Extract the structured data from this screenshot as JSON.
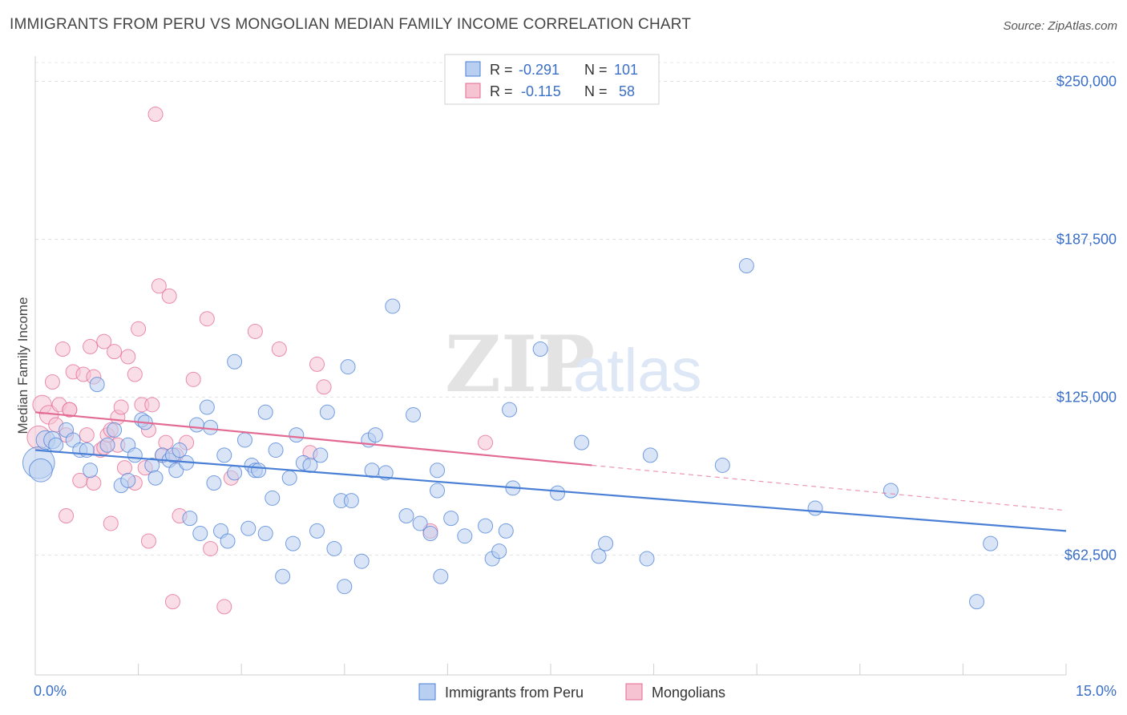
{
  "title": "IMMIGRANTS FROM PERU VS MONGOLIAN MEDIAN FAMILY INCOME CORRELATION CHART",
  "source": "Source: ZipAtlas.com",
  "colors": {
    "blue": "#4a7fd6",
    "blue_fill": "#b9cff1",
    "pink": "#e36a92",
    "pink_fill": "#f6c3d3",
    "axis_text": "#3a6fc7"
  },
  "watermark": {
    "zip": "ZIP",
    "atlas": "atlas"
  },
  "legend": {
    "r_label": "R =",
    "n_label": "N =",
    "rows": [
      {
        "r": "-0.291",
        "n": "101"
      },
      {
        "r": "-0.115",
        "n": "58"
      }
    ]
  },
  "chart_data": {
    "type": "scatter",
    "xlabel": "",
    "ylabel": "Median Family Income",
    "xlim": [
      0,
      15
    ],
    "ylim": [
      15000,
      260000
    ],
    "x_tick_labels": [
      "0.0%",
      "15.0%"
    ],
    "y_ticks": [
      62500,
      125000,
      187500,
      250000
    ],
    "y_tick_labels": [
      "$62,500",
      "$125,000",
      "$187,500",
      "$250,000"
    ],
    "grid": "horizontal dashed",
    "legend_position": "top-center",
    "series": [
      {
        "name": "Immigrants from Peru",
        "color": "#4a7fd6",
        "trend": {
          "x": [
            0,
            15
          ],
          "y": [
            104000,
            72000
          ],
          "dashed_to": 15
        },
        "points": [
          [
            0.05,
            99000,
            2.2
          ],
          [
            0.08,
            96000,
            1.6
          ],
          [
            0.15,
            108000,
            1.3
          ],
          [
            0.25,
            108000,
            1.2
          ],
          [
            0.3,
            106000,
            1
          ],
          [
            0.45,
            112000,
            1
          ],
          [
            0.55,
            108000,
            1
          ],
          [
            0.65,
            104000,
            1
          ],
          [
            0.75,
            104000,
            1
          ],
          [
            0.8,
            96000,
            1
          ],
          [
            0.9,
            130000,
            1
          ],
          [
            1.05,
            106000,
            1
          ],
          [
            1.15,
            112000,
            1
          ],
          [
            1.25,
            90000,
            1
          ],
          [
            1.35,
            92000,
            1
          ],
          [
            1.35,
            106000,
            1
          ],
          [
            1.45,
            102000,
            1
          ],
          [
            1.55,
            116000,
            1
          ],
          [
            1.6,
            115000,
            1
          ],
          [
            1.7,
            98000,
            1
          ],
          [
            1.75,
            93000,
            1
          ],
          [
            1.85,
            102000,
            1
          ],
          [
            1.95,
            100000,
            1
          ],
          [
            2.0,
            102000,
            1
          ],
          [
            2.05,
            96000,
            1
          ],
          [
            2.1,
            104000,
            1
          ],
          [
            2.2,
            99000,
            1
          ],
          [
            2.25,
            77000,
            1
          ],
          [
            2.4,
            71000,
            1
          ],
          [
            2.5,
            121000,
            1
          ],
          [
            2.55,
            113000,
            1
          ],
          [
            2.6,
            91000,
            1
          ],
          [
            2.35,
            114000,
            1
          ],
          [
            2.7,
            72000,
            1
          ],
          [
            2.75,
            102000,
            1
          ],
          [
            2.8,
            68000,
            1
          ],
          [
            2.9,
            95000,
            1
          ],
          [
            2.9,
            139000,
            1
          ],
          [
            3.05,
            108000,
            1
          ],
          [
            3.1,
            73000,
            1
          ],
          [
            3.15,
            98000,
            1
          ],
          [
            3.2,
            96000,
            1
          ],
          [
            3.25,
            96000,
            1
          ],
          [
            3.35,
            71000,
            1
          ],
          [
            3.35,
            119000,
            1
          ],
          [
            3.45,
            85000,
            1
          ],
          [
            3.5,
            104000,
            1
          ],
          [
            3.6,
            54000,
            1
          ],
          [
            3.7,
            93000,
            1
          ],
          [
            3.75,
            67000,
            1
          ],
          [
            3.8,
            110000,
            1
          ],
          [
            3.9,
            99000,
            1
          ],
          [
            4.0,
            98000,
            1
          ],
          [
            4.1,
            72000,
            1
          ],
          [
            4.15,
            102000,
            1
          ],
          [
            4.25,
            119000,
            1
          ],
          [
            4.35,
            65000,
            1
          ],
          [
            4.45,
            84000,
            1
          ],
          [
            4.5,
            50000,
            1
          ],
          [
            4.55,
            137000,
            1
          ],
          [
            4.6,
            84000,
            1
          ],
          [
            4.75,
            60000,
            1
          ],
          [
            4.85,
            108000,
            1
          ],
          [
            4.9,
            96000,
            1
          ],
          [
            4.95,
            110000,
            1
          ],
          [
            5.1,
            95000,
            1
          ],
          [
            5.2,
            161000,
            1
          ],
          [
            5.4,
            78000,
            1
          ],
          [
            5.5,
            118000,
            1
          ],
          [
            5.6,
            75000,
            1
          ],
          [
            5.75,
            71000,
            1
          ],
          [
            5.85,
            88000,
            1
          ],
          [
            5.85,
            96000,
            1
          ],
          [
            5.9,
            54000,
            1
          ],
          [
            6.05,
            77000,
            1
          ],
          [
            6.25,
            70000,
            1
          ],
          [
            6.55,
            74000,
            1
          ],
          [
            6.65,
            61000,
            1
          ],
          [
            6.75,
            64000,
            1
          ],
          [
            6.85,
            72000,
            1
          ],
          [
            6.9,
            120000,
            1
          ],
          [
            6.95,
            89000,
            1
          ],
          [
            7.35,
            144000,
            1
          ],
          [
            7.6,
            87000,
            1
          ],
          [
            7.95,
            107000,
            1
          ],
          [
            8.2,
            62000,
            1
          ],
          [
            8.3,
            67000,
            1
          ],
          [
            8.9,
            61000,
            1
          ],
          [
            8.95,
            102000,
            1
          ],
          [
            10.0,
            98000,
            1
          ],
          [
            10.35,
            177000,
            1
          ],
          [
            11.35,
            81000,
            1
          ],
          [
            12.45,
            88000,
            1
          ],
          [
            13.7,
            44000,
            1
          ],
          [
            13.9,
            67000,
            1
          ]
        ]
      },
      {
        "name": "Mongolians",
        "color": "#e36a92",
        "trend": {
          "x": [
            0,
            8.1
          ],
          "y": [
            119000,
            98000
          ],
          "dashed_to": 15
        },
        "points": [
          [
            0.05,
            109000,
            1.6
          ],
          [
            0.1,
            122000,
            1.3
          ],
          [
            0.2,
            118000,
            1.3
          ],
          [
            0.25,
            131000,
            1
          ],
          [
            0.3,
            114000,
            1
          ],
          [
            0.35,
            122000,
            1
          ],
          [
            0.4,
            144000,
            1
          ],
          [
            0.45,
            110000,
            1
          ],
          [
            0.5,
            120000,
            1
          ],
          [
            0.55,
            135000,
            1
          ],
          [
            0.45,
            78000,
            1
          ],
          [
            0.5,
            120000,
            1
          ],
          [
            0.65,
            92000,
            1
          ],
          [
            0.75,
            110000,
            1
          ],
          [
            0.7,
            134000,
            1
          ],
          [
            0.8,
            145000,
            1
          ],
          [
            0.85,
            91000,
            1
          ],
          [
            0.85,
            133000,
            1
          ],
          [
            0.95,
            104000,
            1
          ],
          [
            1.0,
            105000,
            1
          ],
          [
            1.0,
            147000,
            1
          ],
          [
            1.05,
            110000,
            1
          ],
          [
            1.1,
            75000,
            1
          ],
          [
            1.1,
            112000,
            1
          ],
          [
            1.15,
            143000,
            1
          ],
          [
            1.2,
            106000,
            1
          ],
          [
            1.2,
            117000,
            1
          ],
          [
            1.25,
            121000,
            1
          ],
          [
            1.3,
            97000,
            1
          ],
          [
            1.35,
            141000,
            1
          ],
          [
            1.45,
            91000,
            1
          ],
          [
            1.45,
            134000,
            1
          ],
          [
            1.5,
            152000,
            1
          ],
          [
            1.55,
            122000,
            1
          ],
          [
            1.6,
            97000,
            1
          ],
          [
            1.65,
            112000,
            1
          ],
          [
            1.65,
            68000,
            1
          ],
          [
            1.7,
            122000,
            1
          ],
          [
            1.75,
            237000,
            1
          ],
          [
            1.8,
            169000,
            1
          ],
          [
            1.85,
            102000,
            1
          ],
          [
            1.9,
            107000,
            1
          ],
          [
            1.95,
            165000,
            1
          ],
          [
            2.0,
            44000,
            1
          ],
          [
            2.05,
            102000,
            1
          ],
          [
            2.1,
            78000,
            1
          ],
          [
            2.3,
            132000,
            1
          ],
          [
            2.2,
            107000,
            1
          ],
          [
            2.5,
            156000,
            1
          ],
          [
            2.55,
            65000,
            1
          ],
          [
            2.75,
            42000,
            1
          ],
          [
            2.85,
            93000,
            1
          ],
          [
            3.2,
            151000,
            1
          ],
          [
            3.55,
            144000,
            1
          ],
          [
            4.0,
            103000,
            1
          ],
          [
            4.1,
            138000,
            1
          ],
          [
            4.2,
            129000,
            1
          ],
          [
            5.75,
            72000,
            1
          ],
          [
            6.55,
            107000,
            1
          ]
        ]
      }
    ]
  }
}
